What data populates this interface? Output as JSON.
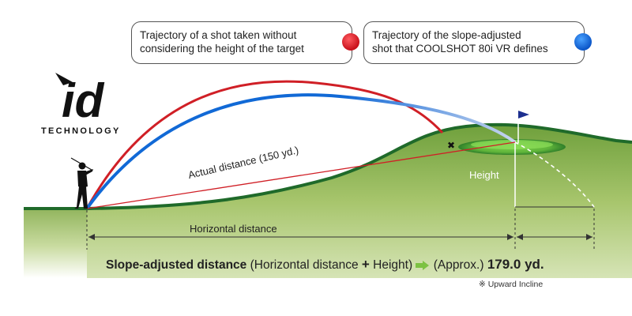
{
  "callouts": {
    "red": {
      "line1": "Trajectory of a shot taken without",
      "line2": "considering the height of the target",
      "color": "#d01f26"
    },
    "blue": {
      "line1": "Trajectory of the slope-adjusted",
      "line2": "shot that COOLSHOT 80i VR defines",
      "color": "#1169d6"
    }
  },
  "logo": {
    "mark": "id",
    "word": "TECHNOLOGY"
  },
  "labels": {
    "actual_distance": "Actual distance (150 yd.)",
    "height": "Height",
    "horizontal_distance": "Horizontal distance"
  },
  "formula": {
    "term": "Slope-adjusted distance",
    "open": "(Horizontal distance",
    "plus": "+",
    "close": "Height)",
    "approx": "(Approx.)",
    "value": "179.0 yd."
  },
  "note": "※ Upward Incline",
  "colors": {
    "red_trajectory": "#d01f26",
    "blue_trajectory": "#1169d6",
    "grass_dark": "#1f6a2a",
    "grass_light": "#a9c86a",
    "arrow_green": "#7cc242"
  },
  "icons": [
    "golfer-silhouette",
    "flag-icon",
    "miss-mark-icon",
    "arrow-right-icon"
  ]
}
